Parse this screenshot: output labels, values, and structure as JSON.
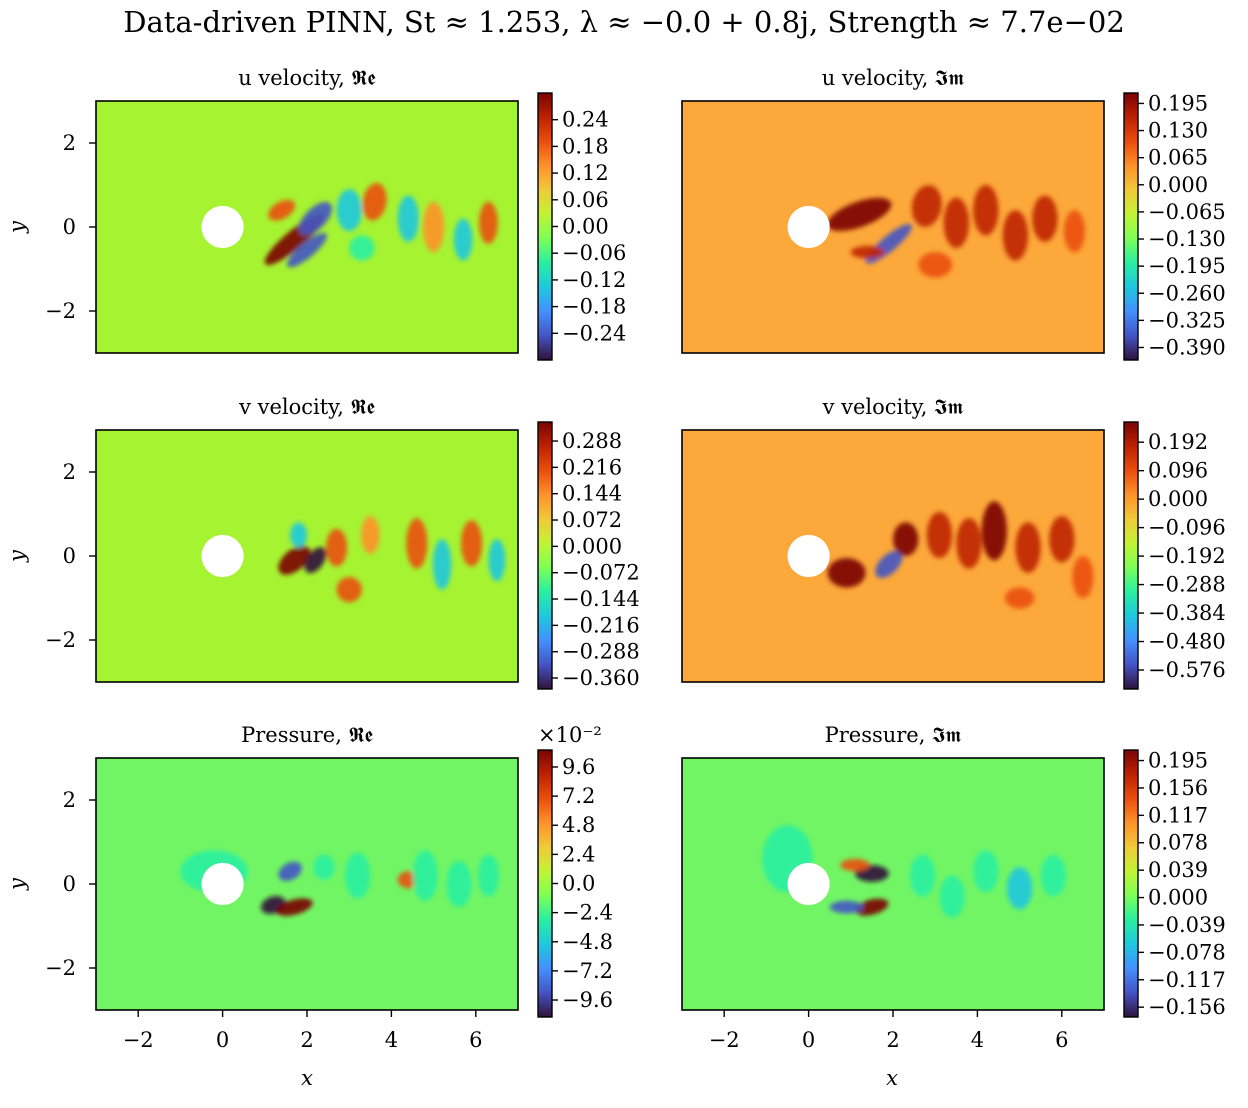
{
  "title": "Data-driven PINN, St ≈ 1.253, λ ≈ −0.0 + 0.8j, Strength ≈ 7.7e−02",
  "colormap": [
    "#30123b",
    "#4454c4",
    "#4490fe",
    "#1fc8de",
    "#29efa2",
    "#7dff56",
    "#c1f334",
    "#f1ca3a",
    "#fe922a",
    "#ea4f0d",
    "#be2102",
    "#7a0403"
  ],
  "circle": {
    "x": 0,
    "y": 0,
    "r": 0.5,
    "color": "#ffffff"
  },
  "axis_labels": {
    "x": "x",
    "y": "y"
  },
  "chart_data": [
    {
      "type": "heatmap",
      "title": "u velocity, 𝕽𝖊",
      "xlim": [
        -3,
        7
      ],
      "ylim": [
        -3,
        3
      ],
      "xticks": [],
      "yticks": [
        "2",
        "0",
        "−2"
      ],
      "background": "#a6f332",
      "colorbar": {
        "ticks": [
          "0.24",
          "0.18",
          "0.12",
          "0.06",
          "0.00",
          "−0.06",
          "−0.12",
          "−0.18",
          "−0.24"
        ],
        "range": [
          -0.3,
          0.3
        ],
        "exponent": ""
      }
    },
    {
      "type": "heatmap",
      "title": "u velocity, 𝕴𝖒",
      "xlim": [
        -3,
        7
      ],
      "ylim": [
        -3,
        3
      ],
      "xticks": [],
      "yticks": [],
      "background": "#fca83a",
      "colorbar": {
        "ticks": [
          "0.195",
          "0.130",
          "0.065",
          "0.000",
          "−0.065",
          "−0.130",
          "−0.195",
          "−0.260",
          "−0.325",
          "−0.390"
        ],
        "range": [
          -0.42,
          0.22
        ],
        "exponent": ""
      }
    },
    {
      "type": "heatmap",
      "title": "v velocity, 𝕽𝖊",
      "xlim": [
        -3,
        7
      ],
      "ylim": [
        -3,
        3
      ],
      "xticks": [],
      "yticks": [
        "2",
        "0",
        "−2"
      ],
      "background": "#a6f332",
      "colorbar": {
        "ticks": [
          "0.288",
          "0.216",
          "0.144",
          "0.072",
          "0.000",
          "−0.072",
          "−0.144",
          "−0.216",
          "−0.288",
          "−0.360"
        ],
        "range": [
          -0.39,
          0.34
        ],
        "exponent": ""
      }
    },
    {
      "type": "heatmap",
      "title": "v velocity, 𝕴𝖒",
      "xlim": [
        -3,
        7
      ],
      "ylim": [
        -3,
        3
      ],
      "xticks": [],
      "yticks": [],
      "background": "#fca83a",
      "colorbar": {
        "ticks": [
          "0.192",
          "0.096",
          "0.000",
          "−0.096",
          "−0.192",
          "−0.288",
          "−0.384",
          "−0.480",
          "−0.576"
        ],
        "range": [
          -0.64,
          0.26
        ],
        "exponent": ""
      }
    },
    {
      "type": "heatmap",
      "title": "Pressure, 𝕽𝖊",
      "xlim": [
        -3,
        7
      ],
      "ylim": [
        -3,
        3
      ],
      "xticks": [
        "−2",
        "0",
        "2",
        "4",
        "6"
      ],
      "yticks": [
        "2",
        "0",
        "−2"
      ],
      "background": "#72f564",
      "colorbar": {
        "ticks": [
          "9.6",
          "7.2",
          "4.8",
          "2.4",
          "0.0",
          "−2.4",
          "−4.8",
          "−7.2",
          "−9.6"
        ],
        "range": [
          -11,
          11
        ],
        "exponent": "×10⁻²"
      }
    },
    {
      "type": "heatmap",
      "title": "Pressure, 𝕴𝖒",
      "xlim": [
        -3,
        7
      ],
      "ylim": [
        -3,
        3
      ],
      "xticks": [
        "−2",
        "0",
        "2",
        "4",
        "6"
      ],
      "yticks": [],
      "background": "#72f564",
      "colorbar": {
        "ticks": [
          "0.195",
          "0.156",
          "0.117",
          "0.078",
          "0.039",
          "0.000",
          "−0.039",
          "−0.078",
          "−0.117",
          "−0.156"
        ],
        "range": [
          -0.17,
          0.21
        ],
        "exponent": ""
      }
    }
  ]
}
